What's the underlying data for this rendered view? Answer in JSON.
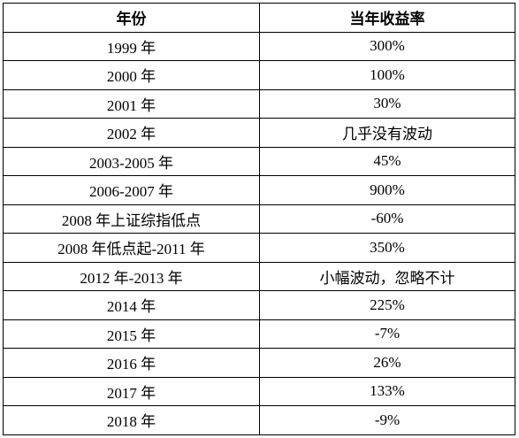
{
  "table": {
    "header": [
      "年份",
      "当年收益率"
    ],
    "rows": [
      [
        "1999 年",
        "300%"
      ],
      [
        "2000 年",
        "100%"
      ],
      [
        "2001 年",
        "30%"
      ],
      [
        "2002 年",
        "几乎没有波动"
      ],
      [
        "2003-2005 年",
        "45%"
      ],
      [
        "2006-2007 年",
        "900%"
      ],
      [
        "2008 年上证综指低点",
        "-60%"
      ],
      [
        "2008 年低点起-2011 年",
        "350%"
      ],
      [
        "2012 年-2013 年",
        "小幅波动，忽略不计"
      ],
      [
        "2014 年",
        "225%"
      ],
      [
        "2015 年",
        "-7%"
      ],
      [
        "2016 年",
        "26%"
      ],
      [
        "2017 年",
        "133%"
      ],
      [
        "2018 年",
        "-9%"
      ]
    ]
  }
}
